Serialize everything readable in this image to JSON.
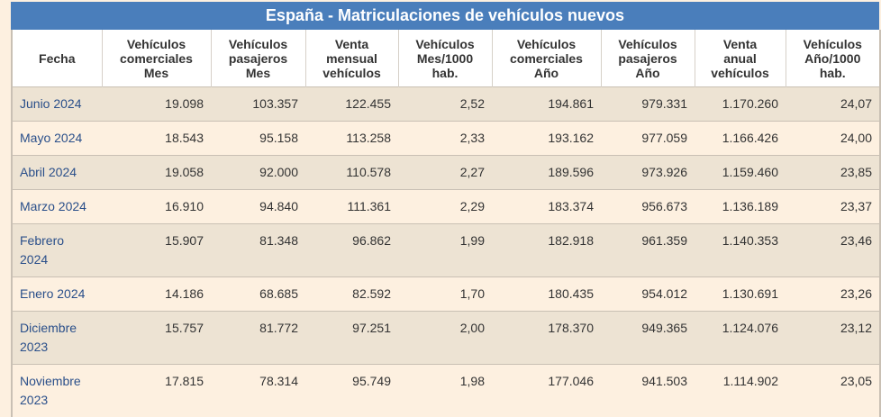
{
  "title": "España - Matriculaciones de vehículos nuevos",
  "headers": [
    [
      "Fecha"
    ],
    [
      "Vehículos",
      "comerciales",
      "Mes"
    ],
    [
      "Vehículos",
      "pasajeros",
      "Mes"
    ],
    [
      "Venta",
      "mensual",
      "vehículos"
    ],
    [
      "Vehículos",
      "Mes/1000",
      "hab."
    ],
    [
      "Vehículos",
      "comerciales",
      "Año"
    ],
    [
      "Vehículos",
      "pasajeros",
      "Año"
    ],
    [
      "Venta",
      "anual",
      "vehículos"
    ],
    [
      "Vehículos",
      "Año/1000",
      "hab."
    ]
  ],
  "rows": [
    [
      "Junio 2024",
      "19.098",
      "103.357",
      "122.455",
      "2,52",
      "194.861",
      "979.331",
      "1.170.260",
      "24,07"
    ],
    [
      "Mayo 2024",
      "18.543",
      "95.158",
      "113.258",
      "2,33",
      "193.162",
      "977.059",
      "1.166.426",
      "24,00"
    ],
    [
      "Abril 2024",
      "19.058",
      "92.000",
      "110.578",
      "2,27",
      "189.596",
      "973.926",
      "1.159.460",
      "23,85"
    ],
    [
      "Marzo 2024",
      "16.910",
      "94.840",
      "111.361",
      "2,29",
      "183.374",
      "956.673",
      "1.136.189",
      "23,37"
    ],
    [
      "Febrero 2024",
      "15.907",
      "81.348",
      "96.862",
      "1,99",
      "182.918",
      "961.359",
      "1.140.353",
      "23,46"
    ],
    [
      "Enero 2024",
      "14.186",
      "68.685",
      "82.592",
      "1,70",
      "180.435",
      "954.012",
      "1.130.691",
      "23,26"
    ],
    [
      "Diciembre 2023",
      "15.757",
      "81.772",
      "97.251",
      "2,00",
      "178.370",
      "949.365",
      "1.124.076",
      "23,12"
    ],
    [
      "Noviembre 2023",
      "17.815",
      "78.314",
      "95.749",
      "1,98",
      "177.046",
      "941.503",
      "1.114.902",
      "23,05"
    ]
  ]
}
